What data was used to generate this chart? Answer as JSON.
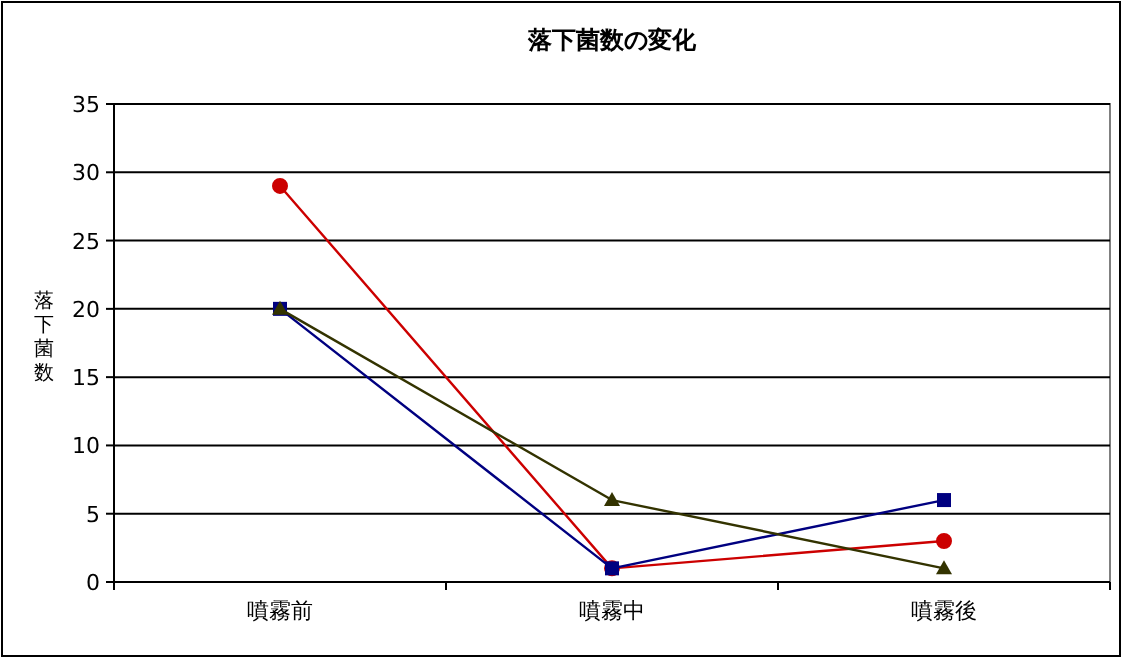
{
  "chart_data": {
    "type": "line",
    "title": "落下菌数の変化",
    "ylabel": "落下菌数",
    "categories": [
      "噴霧前",
      "噴霧中",
      "噴霧後"
    ],
    "series": [
      {
        "color": "#cc0000",
        "marker": "circle",
        "values": [
          29,
          1,
          3
        ]
      },
      {
        "color": "#000080",
        "marker": "square",
        "values": [
          20,
          1,
          6
        ]
      },
      {
        "color": "#333300",
        "marker": "triangle",
        "values": [
          20,
          6,
          1
        ]
      }
    ],
    "ylim": [
      0,
      35
    ],
    "yticks": [
      0,
      5,
      10,
      15,
      20,
      25,
      30,
      35
    ],
    "grid": "y",
    "line_style": "solid"
  }
}
